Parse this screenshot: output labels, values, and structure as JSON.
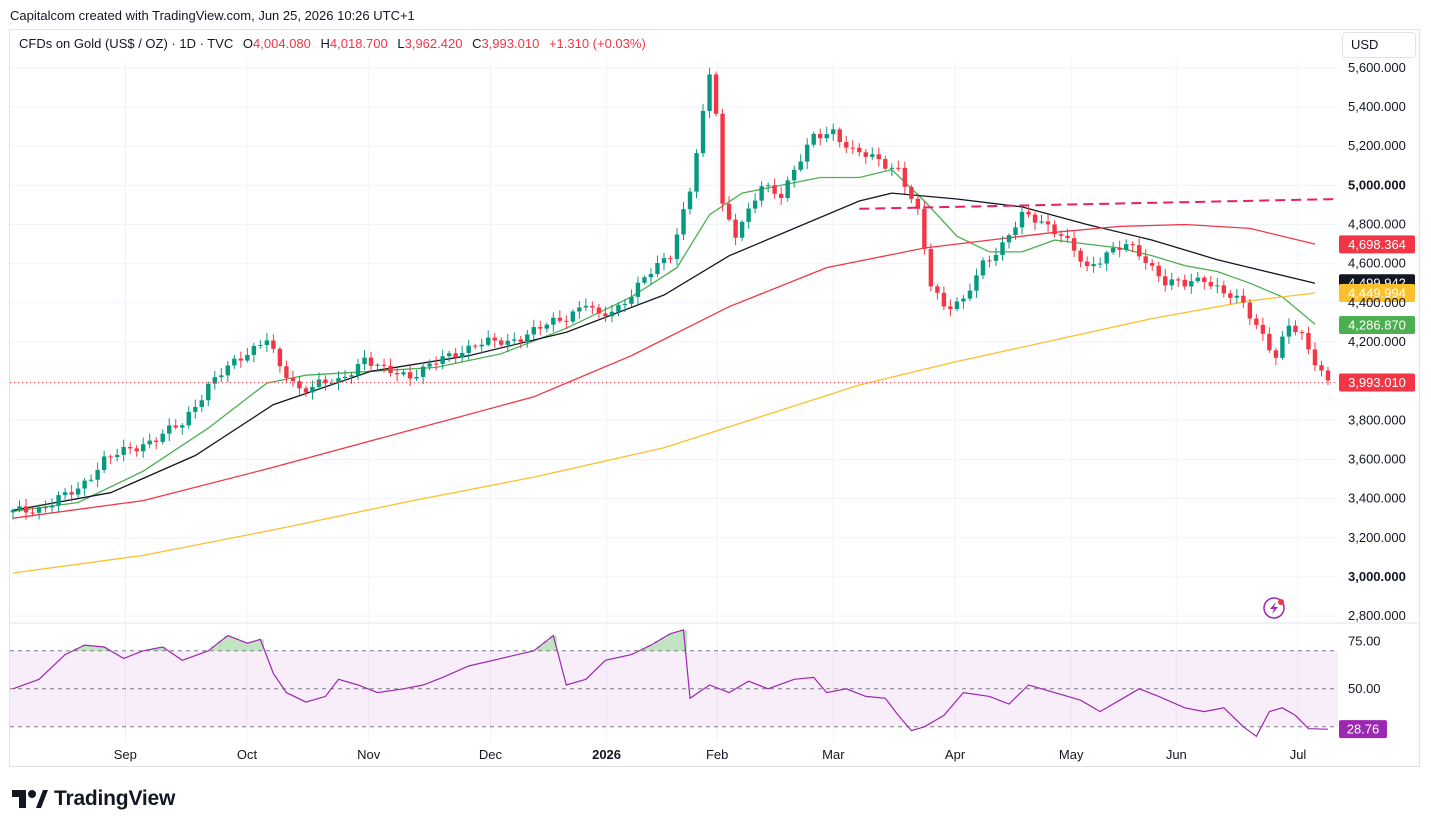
{
  "attribution": "Capitalcom created with TradingView.com, Jun 25, 2026 10:26 UTC+1",
  "legend": {
    "symbol": "CFDs on Gold (US$ / OZ) · 1D · TVC",
    "open_label": "O",
    "open": "4,004.080",
    "high_label": "H",
    "high": "4,018.700",
    "low_label": "L",
    "low": "3,962.420",
    "close_label": "C",
    "close": "3,993.010",
    "change": "+1.310 (+0.03%)"
  },
  "currency": "USD",
  "logo_text": "TradingView",
  "icons": {
    "logo": "tradingview-logo-icon",
    "alert": "lightning-alert-icon"
  },
  "colors": {
    "up": "#089981",
    "down": "#f23645",
    "ma_green": "#4caf50",
    "ma_black": "#131722",
    "ma_red": "#f23645",
    "ma_yellow": "#fbc02d",
    "rsi": "#9c27b0",
    "trendline": "#e91e63"
  },
  "chart_data": [
    {
      "type": "candlestick",
      "title": "CFDs on Gold (US$ / OZ)",
      "x_axis_labels": [
        {
          "label": "Sep",
          "bold": false
        },
        {
          "label": "Oct",
          "bold": false
        },
        {
          "label": "Nov",
          "bold": false
        },
        {
          "label": "Dec",
          "bold": false
        },
        {
          "label": "2026",
          "bold": true
        },
        {
          "label": "Feb",
          "bold": false
        },
        {
          "label": "Mar",
          "bold": false
        },
        {
          "label": "Apr",
          "bold": false
        },
        {
          "label": "May",
          "bold": false
        },
        {
          "label": "Jun",
          "bold": false
        },
        {
          "label": "Jul",
          "bold": false
        }
      ],
      "y_ticks": [
        {
          "label": "5,600.000",
          "value": 5600,
          "bold": false
        },
        {
          "label": "5,400.000",
          "value": 5400,
          "bold": false
        },
        {
          "label": "5,200.000",
          "value": 5200,
          "bold": false
        },
        {
          "label": "5,000.000",
          "value": 5000,
          "bold": true
        },
        {
          "label": "4,800.000",
          "value": 4800,
          "bold": false
        },
        {
          "label": "4,600.000",
          "value": 4600,
          "bold": false
        },
        {
          "label": "4,400.000",
          "value": 4400,
          "bold": false
        },
        {
          "label": "4,200.000",
          "value": 4200,
          "bold": false
        },
        {
          "label": "3,800.000",
          "value": 3800,
          "bold": false
        },
        {
          "label": "3,600.000",
          "value": 3600,
          "bold": false
        },
        {
          "label": "3,400.000",
          "value": 3400,
          "bold": false
        },
        {
          "label": "3,200.000",
          "value": 3200,
          "bold": false
        },
        {
          "label": "3,000.000",
          "value": 3000,
          "bold": true
        },
        {
          "label": "2,800.000",
          "value": 2800,
          "bold": false
        }
      ],
      "ylim": [
        2780,
        5640
      ],
      "price_path": [
        [
          0,
          3330
        ],
        [
          4,
          3350
        ],
        [
          10,
          3445
        ],
        [
          14,
          3600
        ],
        [
          18,
          3650
        ],
        [
          22,
          3710
        ],
        [
          26,
          3780
        ],
        [
          30,
          3980
        ],
        [
          36,
          4150
        ],
        [
          39,
          4220
        ],
        [
          41,
          4060
        ],
        [
          44,
          3960
        ],
        [
          47,
          3990
        ],
        [
          50,
          3990
        ],
        [
          54,
          4120
        ],
        [
          57,
          4050
        ],
        [
          61,
          4030
        ],
        [
          66,
          4110
        ],
        [
          71,
          4190
        ],
        [
          76,
          4200
        ],
        [
          81,
          4270
        ],
        [
          85,
          4330
        ],
        [
          88,
          4400
        ],
        [
          90,
          4320
        ],
        [
          93,
          4380
        ],
        [
          97,
          4520
        ],
        [
          101,
          4650
        ],
        [
          104,
          4980
        ],
        [
          106,
          5350
        ],
        [
          107,
          5560
        ],
        [
          108,
          5380
        ],
        [
          109,
          4900
        ],
        [
          111,
          4760
        ],
        [
          113,
          4860
        ],
        [
          115,
          4990
        ],
        [
          118,
          4960
        ],
        [
          120,
          5080
        ],
        [
          123,
          5240
        ],
        [
          126,
          5280
        ],
        [
          129,
          5170
        ],
        [
          133,
          5130
        ],
        [
          136,
          5080
        ],
        [
          139,
          4850
        ],
        [
          141,
          4500
        ],
        [
          143,
          4390
        ],
        [
          146,
          4400
        ],
        [
          149,
          4600
        ],
        [
          152,
          4700
        ],
        [
          155,
          4840
        ],
        [
          158,
          4820
        ],
        [
          161,
          4750
        ],
        [
          165,
          4570
        ],
        [
          168,
          4660
        ],
        [
          171,
          4690
        ],
        [
          174,
          4620
        ],
        [
          177,
          4510
        ],
        [
          180,
          4490
        ],
        [
          183,
          4530
        ],
        [
          186,
          4450
        ],
        [
          189,
          4390
        ],
        [
          192,
          4240
        ],
        [
          194,
          4120
        ],
        [
          196,
          4280
        ],
        [
          198,
          4230
        ],
        [
          200,
          4110
        ],
        [
          202,
          3993
        ]
      ],
      "moving_averages": [
        {
          "color": "#4caf50",
          "last_value": "4,286.870",
          "points": [
            [
              0,
              3335
            ],
            [
              10,
              3380
            ],
            [
              20,
              3540
            ],
            [
              30,
              3760
            ],
            [
              39,
              3990
            ],
            [
              45,
              4030
            ],
            [
              55,
              4050
            ],
            [
              65,
              4070
            ],
            [
              75,
              4140
            ],
            [
              85,
              4270
            ],
            [
              95,
              4430
            ],
            [
              102,
              4580
            ],
            [
              107,
              4850
            ],
            [
              112,
              4960
            ],
            [
              118,
              5000
            ],
            [
              124,
              5040
            ],
            [
              130,
              5040
            ],
            [
              135,
              5080
            ],
            [
              140,
              4920
            ],
            [
              145,
              4740
            ],
            [
              150,
              4660
            ],
            [
              155,
              4660
            ],
            [
              160,
              4720
            ],
            [
              165,
              4700
            ],
            [
              170,
              4680
            ],
            [
              175,
              4640
            ],
            [
              180,
              4590
            ],
            [
              185,
              4560
            ],
            [
              190,
              4500
            ],
            [
              195,
              4430
            ],
            [
              200,
              4290
            ]
          ]
        },
        {
          "color": "#131722",
          "last_value": "4,499.942",
          "points": [
            [
              0,
              3340
            ],
            [
              15,
              3430
            ],
            [
              28,
              3620
            ],
            [
              40,
              3880
            ],
            [
              55,
              4050
            ],
            [
              70,
              4130
            ],
            [
              85,
              4250
            ],
            [
              100,
              4440
            ],
            [
              110,
              4640
            ],
            [
              120,
              4780
            ],
            [
              130,
              4920
            ],
            [
              135,
              4960
            ],
            [
              145,
              4930
            ],
            [
              155,
              4890
            ],
            [
              165,
              4800
            ],
            [
              175,
              4720
            ],
            [
              185,
              4620
            ],
            [
              190,
              4580
            ],
            [
              200,
              4500
            ]
          ]
        },
        {
          "color": "#f23645",
          "last_value": "4,698.364",
          "points": [
            [
              0,
              3300
            ],
            [
              20,
              3390
            ],
            [
              40,
              3560
            ],
            [
              60,
              3740
            ],
            [
              80,
              3920
            ],
            [
              95,
              4130
            ],
            [
              110,
              4380
            ],
            [
              125,
              4580
            ],
            [
              140,
              4680
            ],
            [
              150,
              4720
            ],
            [
              160,
              4760
            ],
            [
              170,
              4790
            ],
            [
              180,
              4800
            ],
            [
              190,
              4780
            ],
            [
              200,
              4700
            ]
          ]
        },
        {
          "color": "#fbc02d",
          "last_value": "4,449.994",
          "points": [
            [
              0,
              3020
            ],
            [
              20,
              3110
            ],
            [
              40,
              3240
            ],
            [
              60,
              3380
            ],
            [
              80,
              3510
            ],
            [
              100,
              3660
            ],
            [
              115,
              3820
            ],
            [
              130,
              3980
            ],
            [
              145,
              4100
            ],
            [
              160,
              4210
            ],
            [
              175,
              4320
            ],
            [
              190,
              4410
            ],
            [
              200,
              4450
            ]
          ]
        }
      ],
      "trendline": {
        "color": "#e91e63",
        "style": "dashed",
        "points": [
          [
            130,
            4880
          ],
          [
            200,
            4930
          ]
        ]
      },
      "last_price_badge": {
        "label": "3,993.010",
        "value": 3993.01,
        "color": "#f23645"
      },
      "ma_badges": [
        {
          "label": "4,698.364",
          "value": 4698.364,
          "color": "#f23645",
          "text_color": "#ffffff"
        },
        {
          "label": "4,499.942",
          "value": 4499.942,
          "color": "#131722",
          "text_color": "#ffffff"
        },
        {
          "label": "4,449.994",
          "value": 4449.994,
          "color": "#fbc02d",
          "text_color": "#131722"
        },
        {
          "label": "4,286.870",
          "value": 4286.87,
          "color": "#4caf50",
          "text_color": "#ffffff"
        }
      ]
    },
    {
      "type": "line",
      "name": "RSI",
      "ylim": [
        22,
        82
      ],
      "y_ticks": [
        {
          "label": "75.00",
          "value": 75
        },
        {
          "label": "50.00",
          "value": 50
        }
      ],
      "band_upper": 70,
      "band_lower": 30,
      "band_mid": 50,
      "last_value_badge": {
        "label": "28.76",
        "value": 28.76,
        "color": "#9c27b0"
      },
      "points": [
        [
          0,
          50
        ],
        [
          4,
          55
        ],
        [
          8,
          68
        ],
        [
          11,
          73
        ],
        [
          14,
          72
        ],
        [
          17,
          66
        ],
        [
          20,
          70
        ],
        [
          23,
          72
        ],
        [
          26,
          65
        ],
        [
          30,
          70
        ],
        [
          33,
          78
        ],
        [
          36,
          74
        ],
        [
          38,
          76
        ],
        [
          40,
          58
        ],
        [
          42,
          48
        ],
        [
          45,
          43
        ],
        [
          48,
          46
        ],
        [
          50,
          55
        ],
        [
          53,
          52
        ],
        [
          56,
          48
        ],
        [
          60,
          50
        ],
        [
          63,
          52
        ],
        [
          66,
          56
        ],
        [
          70,
          62
        ],
        [
          75,
          66
        ],
        [
          80,
          70
        ],
        [
          83,
          78
        ],
        [
          85,
          52
        ],
        [
          88,
          55
        ],
        [
          91,
          65
        ],
        [
          95,
          68
        ],
        [
          98,
          73
        ],
        [
          101,
          79
        ],
        [
          103,
          81
        ],
        [
          104,
          45
        ],
        [
          107,
          52
        ],
        [
          110,
          48
        ],
        [
          113,
          54
        ],
        [
          116,
          50
        ],
        [
          120,
          55
        ],
        [
          123,
          56
        ],
        [
          125,
          48
        ],
        [
          128,
          50
        ],
        [
          131,
          46
        ],
        [
          134,
          45
        ],
        [
          136,
          36
        ],
        [
          138,
          28
        ],
        [
          140,
          30
        ],
        [
          143,
          36
        ],
        [
          146,
          48
        ],
        [
          150,
          46
        ],
        [
          153,
          42
        ],
        [
          156,
          52
        ],
        [
          160,
          48
        ],
        [
          164,
          44
        ],
        [
          167,
          38
        ],
        [
          170,
          44
        ],
        [
          173,
          50
        ],
        [
          176,
          46
        ],
        [
          180,
          40
        ],
        [
          183,
          38
        ],
        [
          186,
          40
        ],
        [
          189,
          30
        ],
        [
          191,
          25
        ],
        [
          193,
          38
        ],
        [
          195,
          40
        ],
        [
          197,
          36
        ],
        [
          199,
          29
        ],
        [
          202,
          28.76
        ]
      ]
    }
  ]
}
